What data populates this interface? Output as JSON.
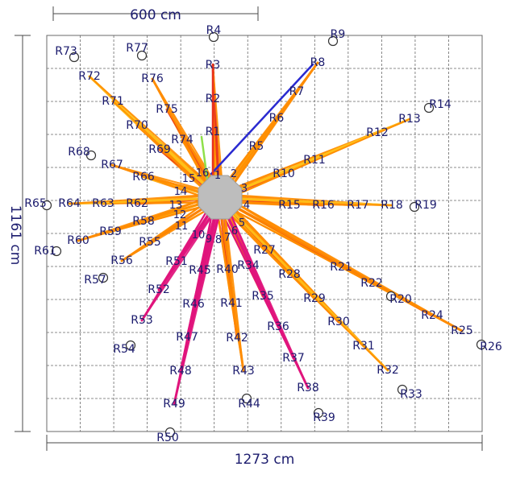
{
  "dimensions": {
    "scale_bar": "600 cm",
    "width": "1273 cm",
    "height": "1161 cm"
  },
  "colors": {
    "ray_yellow": "#ffc21a",
    "ray_orange": "#ff8c00",
    "ray_red": "#e8301c",
    "ray_magenta": "#e0147c",
    "ray_blue": "#2a2ad0",
    "ray_green": "#8fe04a",
    "source": "#bdbdbd",
    "text": "#1c1c6e",
    "grid": "#6a6a6a"
  },
  "source_numbers": [
    "1",
    "2",
    "3",
    "4",
    "5",
    "6",
    "7",
    "8",
    "9",
    "10",
    "11",
    "12",
    "13",
    "14",
    "15",
    "16"
  ],
  "receivers": [
    {
      "id": "R1",
      "label": "R1",
      "circle": false
    },
    {
      "id": "R2",
      "label": "R2",
      "circle": false
    },
    {
      "id": "R3",
      "label": "R3",
      "circle": false
    },
    {
      "id": "R4",
      "label": "R4",
      "circle": true
    },
    {
      "id": "R5",
      "label": "R5",
      "circle": false
    },
    {
      "id": "R6",
      "label": "R6",
      "circle": false
    },
    {
      "id": "R7",
      "label": "R7",
      "circle": false
    },
    {
      "id": "R8",
      "label": "R8",
      "circle": false
    },
    {
      "id": "R9",
      "label": "R9",
      "circle": true
    },
    {
      "id": "R10",
      "label": "R10",
      "circle": false
    },
    {
      "id": "R11",
      "label": "R11",
      "circle": false
    },
    {
      "id": "R12",
      "label": "R12",
      "circle": false
    },
    {
      "id": "R13",
      "label": "R13",
      "circle": false
    },
    {
      "id": "R14",
      "label": "R14",
      "circle": true
    },
    {
      "id": "R15",
      "label": "R15",
      "circle": false
    },
    {
      "id": "R16",
      "label": "R16",
      "circle": false
    },
    {
      "id": "R17",
      "label": "R17",
      "circle": false
    },
    {
      "id": "R18",
      "label": "R18",
      "circle": false
    },
    {
      "id": "R19",
      "label": "R19",
      "circle": true
    },
    {
      "id": "R20",
      "label": "R20",
      "circle": true
    },
    {
      "id": "R21",
      "label": "R21",
      "circle": false
    },
    {
      "id": "R22",
      "label": "R22",
      "circle": false
    },
    {
      "id": "R24",
      "label": "R24",
      "circle": false
    },
    {
      "id": "R25",
      "label": "R25",
      "circle": false
    },
    {
      "id": "R26",
      "label": "R26",
      "circle": true
    },
    {
      "id": "R27",
      "label": "R27",
      "circle": false
    },
    {
      "id": "R28",
      "label": "R28",
      "circle": false
    },
    {
      "id": "R29",
      "label": "R29",
      "circle": false
    },
    {
      "id": "R30",
      "label": "R30",
      "circle": false
    },
    {
      "id": "R31",
      "label": "R31",
      "circle": false
    },
    {
      "id": "R32",
      "label": "R32",
      "circle": false
    },
    {
      "id": "R33",
      "label": "R33",
      "circle": true
    },
    {
      "id": "R34",
      "label": "R34",
      "circle": false
    },
    {
      "id": "R35",
      "label": "R35",
      "circle": false
    },
    {
      "id": "R36",
      "label": "R36",
      "circle": false
    },
    {
      "id": "R37",
      "label": "R37",
      "circle": false
    },
    {
      "id": "R38",
      "label": "R38",
      "circle": false
    },
    {
      "id": "R39",
      "label": "R39",
      "circle": true
    },
    {
      "id": "R40",
      "label": "R40",
      "circle": false
    },
    {
      "id": "R41",
      "label": "R41",
      "circle": false
    },
    {
      "id": "R42",
      "label": "R42",
      "circle": false
    },
    {
      "id": "R43",
      "label": "R43",
      "circle": false
    },
    {
      "id": "R44",
      "label": "R44",
      "circle": true
    },
    {
      "id": "R45",
      "label": "R45",
      "circle": false
    },
    {
      "id": "R46",
      "label": "R46",
      "circle": false
    },
    {
      "id": "R47",
      "label": "R47",
      "circle": false
    },
    {
      "id": "R48",
      "label": "R48",
      "circle": false
    },
    {
      "id": "R49",
      "label": "R49",
      "circle": false
    },
    {
      "id": "R50",
      "label": "R50",
      "circle": true
    },
    {
      "id": "R51",
      "label": "R51",
      "circle": false
    },
    {
      "id": "R52",
      "label": "R52",
      "circle": false
    },
    {
      "id": "R53",
      "label": "R53",
      "circle": false
    },
    {
      "id": "R54",
      "label": "R54",
      "circle": true
    },
    {
      "id": "R55",
      "label": "R55",
      "circle": false
    },
    {
      "id": "R56",
      "label": "R56",
      "circle": false
    },
    {
      "id": "R57",
      "label": "R57",
      "circle": true
    },
    {
      "id": "R58",
      "label": "R58",
      "circle": false
    },
    {
      "id": "R59",
      "label": "R59",
      "circle": false
    },
    {
      "id": "R60",
      "label": "R60",
      "circle": false
    },
    {
      "id": "R61",
      "label": "R61",
      "circle": true
    },
    {
      "id": "R62",
      "label": "R62",
      "circle": false
    },
    {
      "id": "R63",
      "label": "R63",
      "circle": false
    },
    {
      "id": "R64",
      "label": "R64",
      "circle": false
    },
    {
      "id": "R65",
      "label": "R65",
      "circle": true
    },
    {
      "id": "R66",
      "label": "R66",
      "circle": false
    },
    {
      "id": "R67",
      "label": "R67",
      "circle": false
    },
    {
      "id": "R68",
      "label": "R68",
      "circle": true
    },
    {
      "id": "R69",
      "label": "R69",
      "circle": false
    },
    {
      "id": "R70",
      "label": "R70",
      "circle": false
    },
    {
      "id": "R71",
      "label": "R71",
      "circle": false
    },
    {
      "id": "R72",
      "label": "R72",
      "circle": false
    },
    {
      "id": "R73",
      "label": "R73",
      "circle": true
    },
    {
      "id": "R74",
      "label": "R74",
      "circle": false
    },
    {
      "id": "R75",
      "label": "R75",
      "circle": false
    },
    {
      "id": "R76",
      "label": "R76",
      "circle": false
    },
    {
      "id": "R77",
      "label": "R77",
      "circle": true
    }
  ]
}
